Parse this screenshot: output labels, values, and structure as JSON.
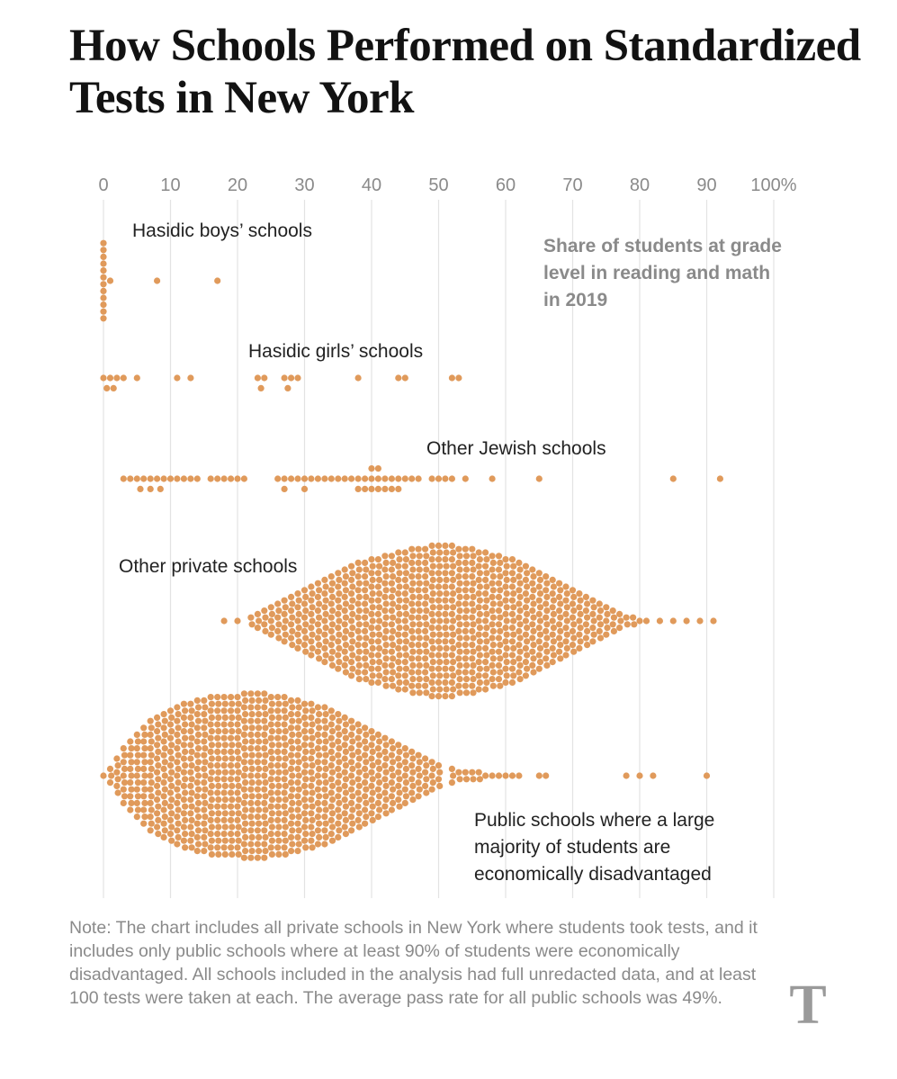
{
  "title": "How Schools Performed on Standardized Tests in New York",
  "note": "Note: The chart includes all private schools in New York where students took tests, and it includes only public schools where at least 90% of students were economically disadvantaged. All schools included in the analysis had full unredacted data, and at least 100 tests were taken at each. The average pass rate for all public schools was 49%.",
  "logo": "T",
  "colors": {
    "dot": "#e09a5b",
    "grid": "#e3e3e3",
    "tick": "#8a8a8a",
    "label": "#222222",
    "annotation": "#8a8a8a"
  },
  "chart_data": {
    "type": "scatter",
    "subtype": "beeswarm",
    "title": "Share of students at grade level in reading and math in 2019",
    "xlabel": "",
    "ylabel": "",
    "xlim": [
      0,
      100
    ],
    "x_ticks": [
      0,
      10,
      20,
      30,
      40,
      50,
      60,
      70,
      80,
      90,
      100
    ],
    "x_tick_labels": [
      "0",
      "10",
      "20",
      "30",
      "40",
      "50",
      "60",
      "70",
      "80",
      "90",
      "100%"
    ],
    "annotation": "Share of students at grade level in reading and math in 2019",
    "annotation_lines": [
      "Share of students at grade",
      "level in reading and math",
      "in 2019"
    ],
    "series": [
      {
        "name": "Hasidic boys’ schools",
        "values": [
          0,
          0,
          0,
          0,
          0,
          0,
          0,
          0,
          0,
          0,
          0,
          0,
          1,
          8,
          17
        ]
      },
      {
        "name": "Hasidic girls’ schools",
        "values": [
          0,
          0.5,
          1,
          1.5,
          2,
          3,
          5,
          11,
          13,
          23,
          23.5,
          24,
          27,
          27.5,
          28,
          29,
          38,
          44,
          45,
          52,
          53
        ]
      },
      {
        "name": "Other Jewish schools",
        "values": [
          3,
          4,
          5,
          5.5,
          6,
          7,
          7,
          8,
          8.5,
          9,
          10,
          11,
          12,
          13,
          14,
          16,
          17,
          18,
          19,
          20,
          21,
          26,
          27,
          27,
          28,
          29,
          30,
          30,
          31,
          32,
          33,
          34,
          35,
          36,
          37,
          38,
          38,
          39,
          39,
          40,
          40,
          40,
          41,
          41,
          41,
          42,
          42,
          43,
          43,
          44,
          44,
          45,
          46,
          47,
          49,
          50,
          51,
          52,
          54,
          58,
          65,
          85,
          92
        ]
      },
      {
        "name": "Other private schools",
        "lines": [
          "Other private schools"
        ],
        "values": [
          18,
          20,
          22,
          23,
          24,
          25,
          26,
          27,
          28,
          29,
          30,
          31,
          32,
          33,
          34,
          35,
          36,
          37,
          38,
          39,
          40,
          41,
          42,
          43,
          44,
          45,
          46,
          47,
          48,
          49,
          50,
          51,
          52,
          53,
          54,
          55,
          56,
          57,
          58,
          59,
          60,
          61,
          62,
          63,
          64,
          65,
          66,
          67,
          68,
          69,
          70,
          71,
          72,
          73,
          74,
          75,
          76,
          77,
          78,
          79,
          80,
          81,
          83,
          85,
          87,
          89,
          91
        ],
        "counts": [
          1,
          1,
          2,
          3,
          4,
          5,
          6,
          7,
          8,
          9,
          10,
          11,
          12,
          13,
          14,
          15,
          16,
          17,
          18,
          18,
          19,
          19,
          20,
          20,
          21,
          21,
          22,
          22,
          22,
          23,
          23,
          23,
          23,
          22,
          22,
          22,
          21,
          21,
          20,
          20,
          19,
          19,
          18,
          17,
          16,
          15,
          14,
          13,
          12,
          11,
          10,
          9,
          8,
          7,
          6,
          5,
          4,
          3,
          2,
          2,
          1,
          1,
          1,
          1,
          1,
          1,
          1
        ]
      },
      {
        "name": "Public schools where a large majority of students are economically disadvantaged",
        "lines": [
          "Public schools where a large",
          "majority of students are",
          "economically disadvantaged"
        ],
        "values": [
          0,
          1,
          2,
          3,
          4,
          5,
          6,
          7,
          8,
          9,
          10,
          11,
          12,
          13,
          14,
          15,
          16,
          17,
          18,
          19,
          20,
          21,
          22,
          23,
          24,
          25,
          26,
          27,
          28,
          29,
          30,
          31,
          32,
          33,
          34,
          35,
          36,
          37,
          38,
          39,
          40,
          41,
          42,
          43,
          44,
          45,
          46,
          47,
          48,
          49,
          50,
          52,
          53,
          54,
          55,
          56,
          57,
          58,
          59,
          60,
          61,
          62,
          65,
          66,
          78,
          80,
          82,
          90
        ],
        "counts": [
          1,
          3,
          6,
          9,
          11,
          13,
          15,
          17,
          18,
          19,
          20,
          21,
          22,
          22,
          23,
          23,
          24,
          24,
          24,
          24,
          24,
          25,
          25,
          25,
          25,
          24,
          24,
          24,
          23,
          23,
          22,
          22,
          21,
          21,
          20,
          19,
          18,
          17,
          16,
          15,
          14,
          13,
          12,
          11,
          10,
          9,
          8,
          7,
          6,
          5,
          4,
          3,
          2,
          2,
          2,
          2,
          1,
          1,
          1,
          1,
          1,
          1,
          1,
          1,
          1,
          1,
          1,
          1
        ]
      }
    ]
  }
}
